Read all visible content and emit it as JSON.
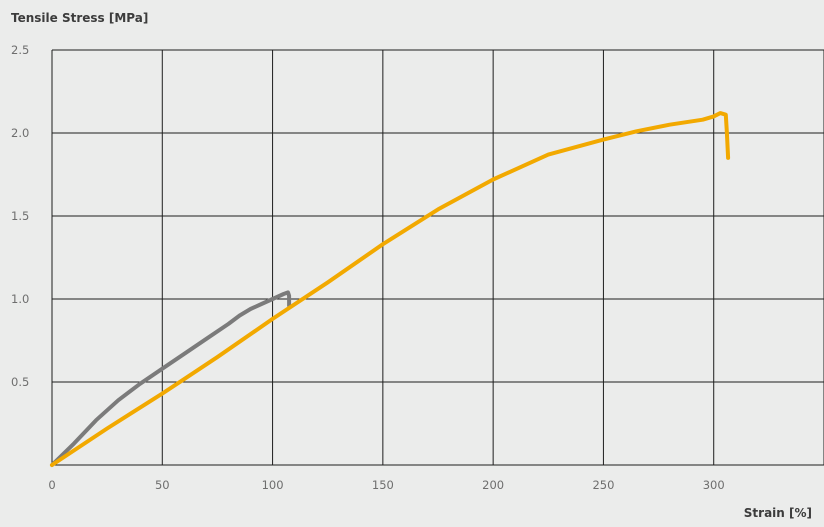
{
  "chart_data": {
    "type": "line",
    "ylabel": "Tensile Stress [MPa]",
    "xlabel": "Strain [%]",
    "xlim": [
      0,
      350
    ],
    "ylim": [
      0,
      2.5
    ],
    "x_ticks": [
      0,
      50,
      100,
      150,
      200,
      250,
      300
    ],
    "x_tick_labels": [
      "0",
      "50",
      "100",
      "150",
      "200",
      "250",
      "300"
    ],
    "y_ticks": [
      0.5,
      1.0,
      1.5,
      2.0,
      2.5
    ],
    "y_tick_labels": [
      "0.5",
      "1.0",
      "1.5",
      "2.0",
      "2.5"
    ],
    "grid": true,
    "series": [
      {
        "color": "#7b7b7b",
        "points": [
          [
            0,
            0
          ],
          [
            10,
            0.13
          ],
          [
            20,
            0.27
          ],
          [
            30,
            0.39
          ],
          [
            40,
            0.49
          ],
          [
            50,
            0.58
          ],
          [
            60,
            0.67
          ],
          [
            70,
            0.76
          ],
          [
            80,
            0.85
          ],
          [
            85,
            0.9
          ],
          [
            90,
            0.94
          ],
          [
            95,
            0.97
          ],
          [
            100,
            1.0
          ],
          [
            105,
            1.03
          ],
          [
            107,
            1.04
          ],
          [
            107.5,
            1.02
          ],
          [
            107.5,
            0.96
          ]
        ]
      },
      {
        "color": "#f2a900",
        "points": [
          [
            0,
            0
          ],
          [
            25,
            0.22
          ],
          [
            50,
            0.43
          ],
          [
            75,
            0.65
          ],
          [
            100,
            0.88
          ],
          [
            125,
            1.1
          ],
          [
            150,
            1.33
          ],
          [
            175,
            1.54
          ],
          [
            200,
            1.72
          ],
          [
            225,
            1.87
          ],
          [
            250,
            1.96
          ],
          [
            265,
            2.01
          ],
          [
            280,
            2.05
          ],
          [
            295,
            2.08
          ],
          [
            300,
            2.1
          ],
          [
            303,
            2.12
          ],
          [
            305.5,
            2.11
          ],
          [
            306,
            2.0
          ],
          [
            306.5,
            1.85
          ]
        ]
      }
    ]
  }
}
